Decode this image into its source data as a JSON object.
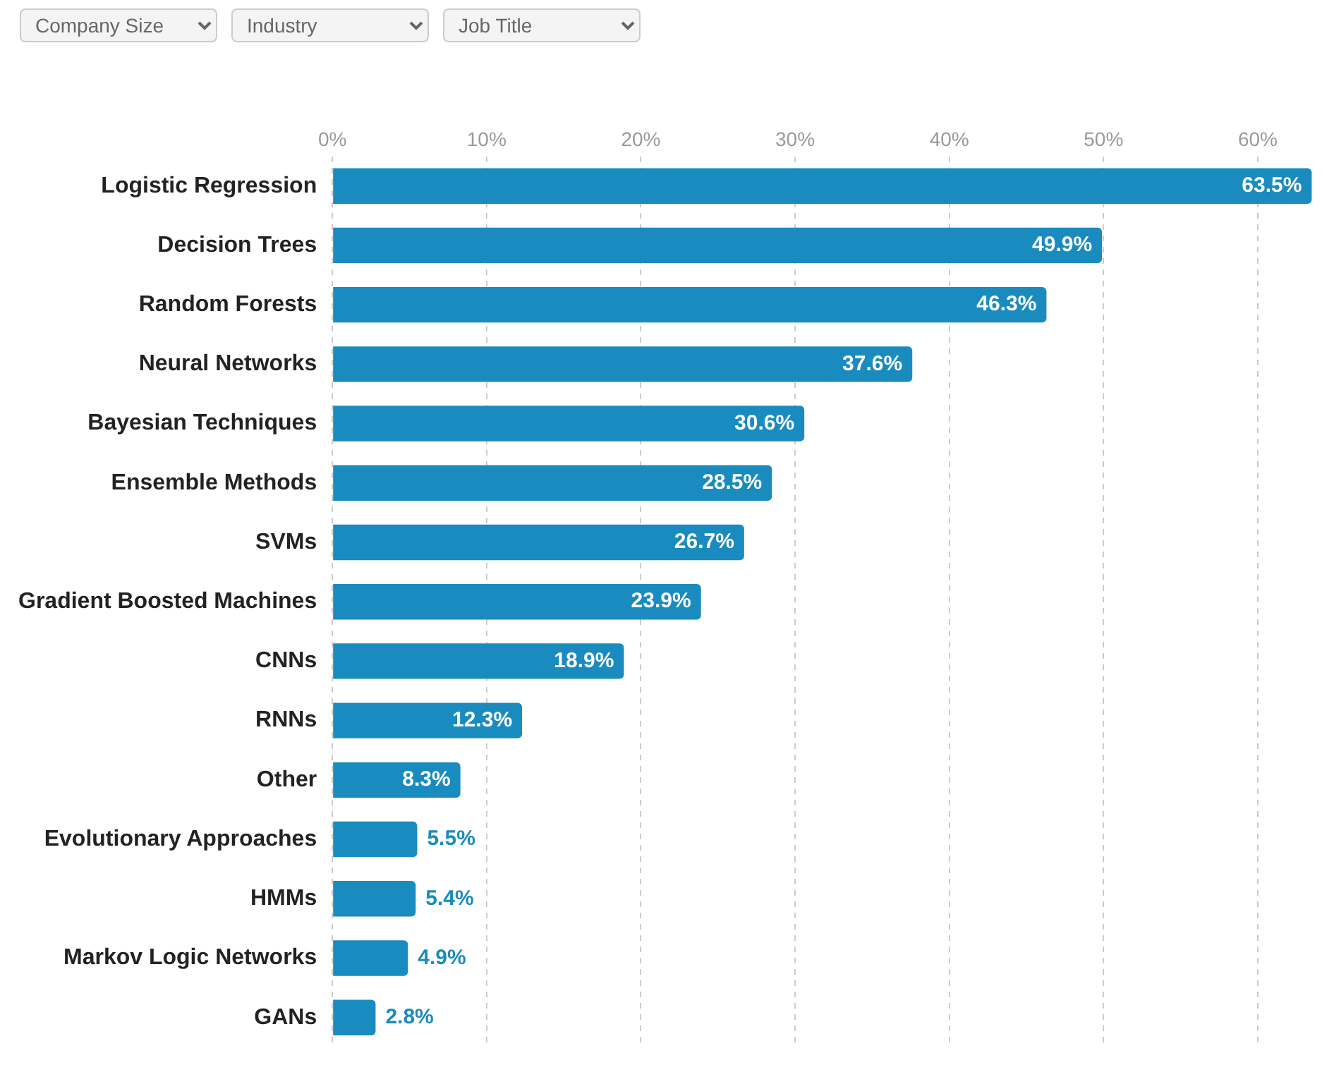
{
  "chart_data": {
    "type": "bar",
    "orientation": "horizontal",
    "categories": [
      "Logistic Regression",
      "Decision Trees",
      "Random Forests",
      "Neural Networks",
      "Bayesian Techniques",
      "Ensemble Methods",
      "SVMs",
      "Gradient Boosted Machines",
      "CNNs",
      "RNNs",
      "Other",
      "Evolutionary Approaches",
      "HMMs",
      "Markov Logic Networks",
      "GANs"
    ],
    "values": [
      63.5,
      49.9,
      46.3,
      37.6,
      30.6,
      28.5,
      26.7,
      23.9,
      18.9,
      12.3,
      8.3,
      5.5,
      5.4,
      4.9,
      2.8
    ],
    "color": "#1a8bbf",
    "xlim": [
      0,
      63.8
    ],
    "xticks": [
      {
        "value": 0,
        "label": "0%"
      },
      {
        "value": 10,
        "label": "10%"
      },
      {
        "value": 20,
        "label": "20%"
      },
      {
        "value": 30,
        "label": "30%"
      },
      {
        "value": 40,
        "label": "40%"
      },
      {
        "value": 50,
        "label": "50%"
      },
      {
        "value": 60,
        "label": "60%"
      }
    ],
    "value_labels": [
      "63.5%",
      "49.9%",
      "46.3%",
      "37.6%",
      "30.6%",
      "28.5%",
      "26.7%",
      "23.9%",
      "18.9%",
      "12.3%",
      "8.3%",
      "5.5%",
      "5.4%",
      "4.9%",
      "2.8%"
    ],
    "grid": "x",
    "legend": false,
    "annotations": [
      "Company Size",
      "Industry",
      "Job Title"
    ]
  }
}
